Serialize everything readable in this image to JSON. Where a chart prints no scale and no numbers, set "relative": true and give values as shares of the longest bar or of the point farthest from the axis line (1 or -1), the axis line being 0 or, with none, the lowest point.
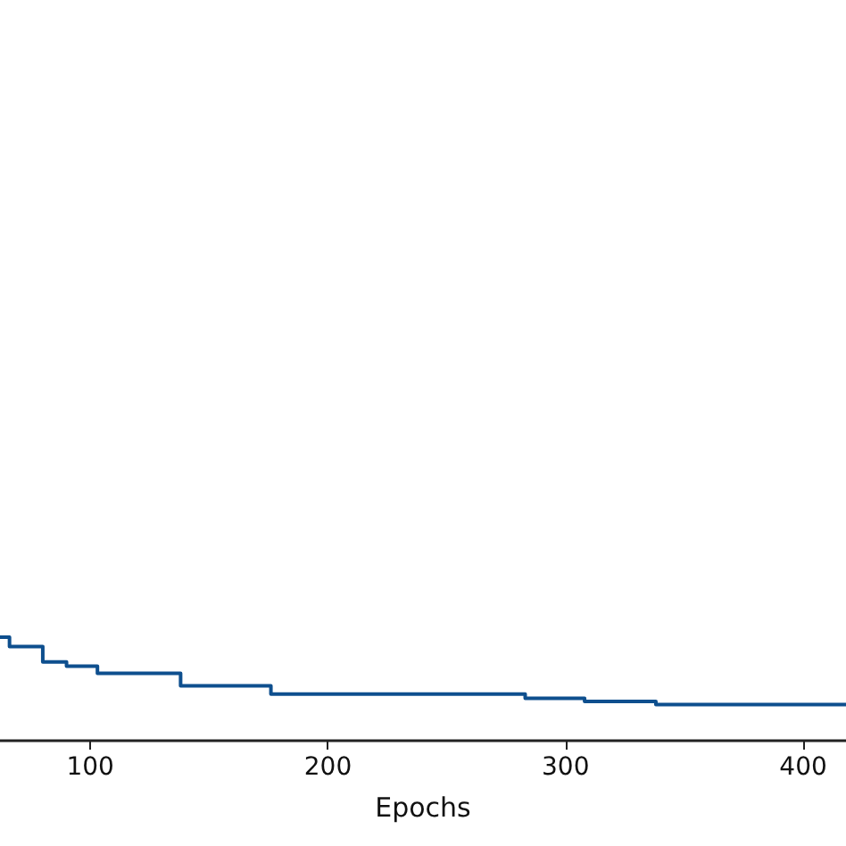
{
  "chart_data": {
    "type": "step",
    "xlabel": "Epochs",
    "relative": true,
    "tick_labels": "x",
    "xlim": [
      62,
      418
    ],
    "xticks": [
      100,
      200,
      300,
      400
    ],
    "grid": false,
    "series": [
      {
        "color": "#0e4f8e",
        "x": [
          62,
          66,
          80,
          90,
          103,
          138,
          176,
          283,
          308,
          338,
          418
        ],
        "values": [
          1,
          0.91,
          0.76,
          0.72,
          0.65,
          0.53,
          0.45,
          0.41,
          0.38,
          0.35,
          0.35
        ]
      }
    ]
  }
}
